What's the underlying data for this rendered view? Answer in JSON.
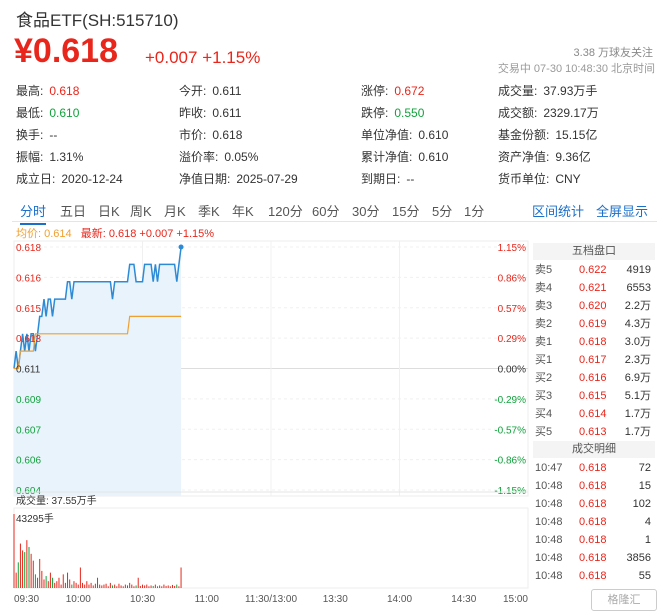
{
  "header": {
    "title": "食品ETF(SH:515710)",
    "price": "¥0.618",
    "change": "+0.007  +1.15%",
    "follow": "3.38 万球友关注",
    "status": "交易中  07-30  10:48:30  北京时间"
  },
  "stats": [
    [
      {
        "k": "最高:",
        "v": "0.618",
        "c": "red"
      },
      {
        "k": "今开:",
        "v": "0.611",
        "c": ""
      },
      {
        "k": "涨停:",
        "v": "0.672",
        "c": "red"
      },
      {
        "k": "成交量:",
        "v": "37.93万手",
        "c": ""
      }
    ],
    [
      {
        "k": "最低:",
        "v": "0.610",
        "c": "green"
      },
      {
        "k": "昨收:",
        "v": "0.611",
        "c": ""
      },
      {
        "k": "跌停:",
        "v": "0.550",
        "c": "green"
      },
      {
        "k": "成交额:",
        "v": "2329.17万",
        "c": ""
      }
    ],
    [
      {
        "k": "换手:",
        "v": "--",
        "c": ""
      },
      {
        "k": "市价:",
        "v": "0.618",
        "c": ""
      },
      {
        "k": "单位净值:",
        "v": "0.610",
        "c": ""
      },
      {
        "k": "基金份额:",
        "v": "15.15亿",
        "c": ""
      }
    ],
    [
      {
        "k": "振幅:",
        "v": "1.31%",
        "c": ""
      },
      {
        "k": "溢价率:",
        "v": "0.05%",
        "c": ""
      },
      {
        "k": "累计净值:",
        "v": "0.610",
        "c": ""
      },
      {
        "k": "资产净值:",
        "v": "9.36亿",
        "c": ""
      }
    ],
    [
      {
        "k": "成立日:",
        "v": "2020-12-24",
        "c": ""
      },
      {
        "k": "净值日期:",
        "v": "2025-07-29",
        "c": ""
      },
      {
        "k": "到期日:",
        "v": "--",
        "c": ""
      },
      {
        "k": "货币单位:",
        "v": "CNY",
        "c": ""
      }
    ]
  ],
  "tabs": [
    "分时",
    "五日",
    "日K",
    "周K",
    "月K",
    "季K",
    "年K",
    "120分",
    "60分",
    "30分",
    "15分",
    "5分",
    "1分"
  ],
  "tab_active": 0,
  "tabs_right": [
    "区间统计",
    "全屏显示"
  ],
  "legend": {
    "avg": "均价: 0.614",
    "latest": "最新: 0.618  +0.007  +1.15%"
  },
  "orderbook": {
    "title": "五档盘口",
    "asks": [
      [
        "卖5",
        "0.622",
        "4919"
      ],
      [
        "卖4",
        "0.621",
        "6553"
      ],
      [
        "卖3",
        "0.620",
        "2.2万"
      ],
      [
        "卖2",
        "0.619",
        "4.3万"
      ],
      [
        "卖1",
        "0.618",
        "3.0万"
      ]
    ],
    "bids": [
      [
        "买1",
        "0.617",
        "2.3万"
      ],
      [
        "买2",
        "0.616",
        "6.9万"
      ],
      [
        "买3",
        "0.615",
        "5.1万"
      ],
      [
        "买4",
        "0.614",
        "1.7万"
      ],
      [
        "买5",
        "0.613",
        "1.7万"
      ]
    ],
    "trades_title": "成交明细",
    "trades": [
      [
        "10:47",
        "0.618",
        "72"
      ],
      [
        "10:48",
        "0.618",
        "15"
      ],
      [
        "10:48",
        "0.618",
        "102"
      ],
      [
        "10:48",
        "0.618",
        "4"
      ],
      [
        "10:48",
        "0.618",
        "1"
      ],
      [
        "10:48",
        "0.618",
        "3856"
      ],
      [
        "10:48",
        "0.618",
        "55"
      ]
    ]
  },
  "chart_data": {
    "type": "line",
    "y_ticks_left": [
      "0.618",
      "0.616",
      "0.615",
      "0.613",
      "0.611",
      "0.609",
      "0.607",
      "0.606",
      "0.604"
    ],
    "y_ticks_right": [
      "1.15%",
      "0.86%",
      "0.57%",
      "0.29%",
      "0.00%",
      "-0.29%",
      "-0.57%",
      "-0.86%",
      "-1.15%"
    ],
    "x_ticks": [
      "09:30",
      "10:00",
      "10:30",
      "11:00",
      "11:30/13:00",
      "13:30",
      "14:00",
      "14:30",
      "15:00"
    ],
    "ylim": [
      0.604,
      0.618
    ],
    "prev_close": 0.611,
    "price_minutes": [
      0,
      1,
      2,
      3,
      4,
      5,
      6,
      7,
      8,
      9,
      10,
      11,
      12,
      13,
      14,
      15,
      16,
      17,
      18,
      19,
      20,
      21,
      22,
      23,
      24,
      25,
      26,
      27,
      28,
      29,
      30,
      31,
      32,
      33,
      34,
      35,
      36,
      37,
      38,
      39,
      40,
      41,
      42,
      43,
      44,
      45,
      46,
      47,
      48,
      49,
      50,
      51,
      52,
      53,
      54,
      55,
      56,
      57,
      58,
      59,
      60,
      61,
      62,
      63,
      64,
      65,
      66,
      67,
      68,
      69,
      70,
      71,
      72,
      73,
      74,
      75,
      76,
      77,
      78
    ],
    "price": [
      0.611,
      0.612,
      0.611,
      0.612,
      0.613,
      0.612,
      0.613,
      0.612,
      0.613,
      0.613,
      0.612,
      0.613,
      0.614,
      0.614,
      0.615,
      0.614,
      0.615,
      0.615,
      0.614,
      0.615,
      0.615,
      0.615,
      0.615,
      0.615,
      0.615,
      0.616,
      0.616,
      0.615,
      0.616,
      0.616,
      0.616,
      0.616,
      0.616,
      0.616,
      0.616,
      0.616,
      0.616,
      0.616,
      0.616,
      0.616,
      0.616,
      0.616,
      0.616,
      0.616,
      0.616,
      0.616,
      0.615,
      0.616,
      0.616,
      0.616,
      0.616,
      0.616,
      0.616,
      0.616,
      0.617,
      0.617,
      0.617,
      0.616,
      0.616,
      0.616,
      0.616,
      0.617,
      0.617,
      0.617,
      0.617,
      0.616,
      0.617,
      0.616,
      0.617,
      0.617,
      0.617,
      0.617,
      0.617,
      0.617,
      0.617,
      0.617,
      0.616,
      0.617,
      0.618
    ],
    "avg": [
      0.611,
      0.611,
      0.611,
      0.612,
      0.612,
      0.612,
      0.612,
      0.612,
      0.612,
      0.612,
      0.613,
      0.613,
      0.613,
      0.613,
      0.613,
      0.613,
      0.613,
      0.613,
      0.613,
      0.613,
      0.613,
      0.613,
      0.613,
      0.613,
      0.613,
      0.613,
      0.613,
      0.613,
      0.613,
      0.613,
      0.613,
      0.613,
      0.613,
      0.613,
      0.613,
      0.613,
      0.613,
      0.613,
      0.613,
      0.613,
      0.613,
      0.613,
      0.613,
      0.613,
      0.613,
      0.613,
      0.613,
      0.613,
      0.613,
      0.613,
      0.613,
      0.613,
      0.613,
      0.613,
      0.614,
      0.614,
      0.614,
      0.614,
      0.614,
      0.614,
      0.614,
      0.614,
      0.614,
      0.614,
      0.614,
      0.614,
      0.614,
      0.614,
      0.614,
      0.614,
      0.614,
      0.614,
      0.614,
      0.614,
      0.614,
      0.614,
      0.614,
      0.614,
      0.614
    ],
    "volume_label": "成交量: 37.55万手",
    "volume_max_label": "43295手",
    "volume_max": 43295,
    "volume": [
      43295,
      9000,
      15000,
      26000,
      22000,
      21000,
      28000,
      24000,
      20000,
      16000,
      8000,
      6000,
      17000,
      10000,
      5000,
      7000,
      4000,
      9000,
      6000,
      3000,
      4000,
      6000,
      2000,
      8000,
      3000,
      9000,
      5000,
      2000,
      4000,
      3000,
      2000,
      12000,
      3000,
      2000,
      4000,
      2000,
      3000,
      1500,
      2500,
      6000,
      2000,
      1500,
      2000,
      2500,
      1000,
      3000,
      1500,
      2000,
      1000,
      2500,
      1500,
      1000,
      2000,
      1500,
      3000,
      2000,
      1000,
      1500,
      6000,
      1200,
      2000,
      1500,
      2000,
      1000,
      1500,
      1200,
      2000,
      1000,
      1500,
      1000,
      2000,
      1200,
      1500,
      1000,
      1800,
      1200,
      2000,
      1000,
      12000
    ]
  }
}
